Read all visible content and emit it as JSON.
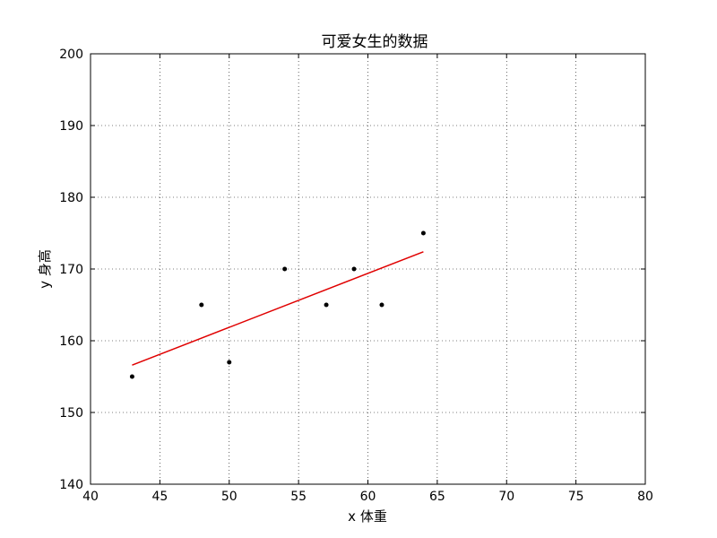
{
  "chart_data": {
    "type": "scatter",
    "title": "可爱女生的数据",
    "xlabel": "x 体重",
    "ylabel": "y 身高",
    "xlim": [
      40,
      80
    ],
    "ylim": [
      140,
      200
    ],
    "xticks": [
      "40",
      "45",
      "50",
      "55",
      "60",
      "65",
      "70",
      "75",
      "80"
    ],
    "yticks": [
      "140",
      "150",
      "160",
      "170",
      "180",
      "190",
      "200"
    ],
    "grid": true,
    "series": [
      {
        "type": "scatter",
        "color": "#000000",
        "x": [
          43,
          48,
          50,
          54,
          57,
          59,
          61,
          64
        ],
        "y": [
          155,
          165,
          157,
          170,
          165,
          170,
          165,
          175
        ]
      },
      {
        "type": "line",
        "color": "#e00000",
        "x": [
          43,
          64
        ],
        "y": [
          156.6,
          172.4
        ]
      }
    ]
  }
}
